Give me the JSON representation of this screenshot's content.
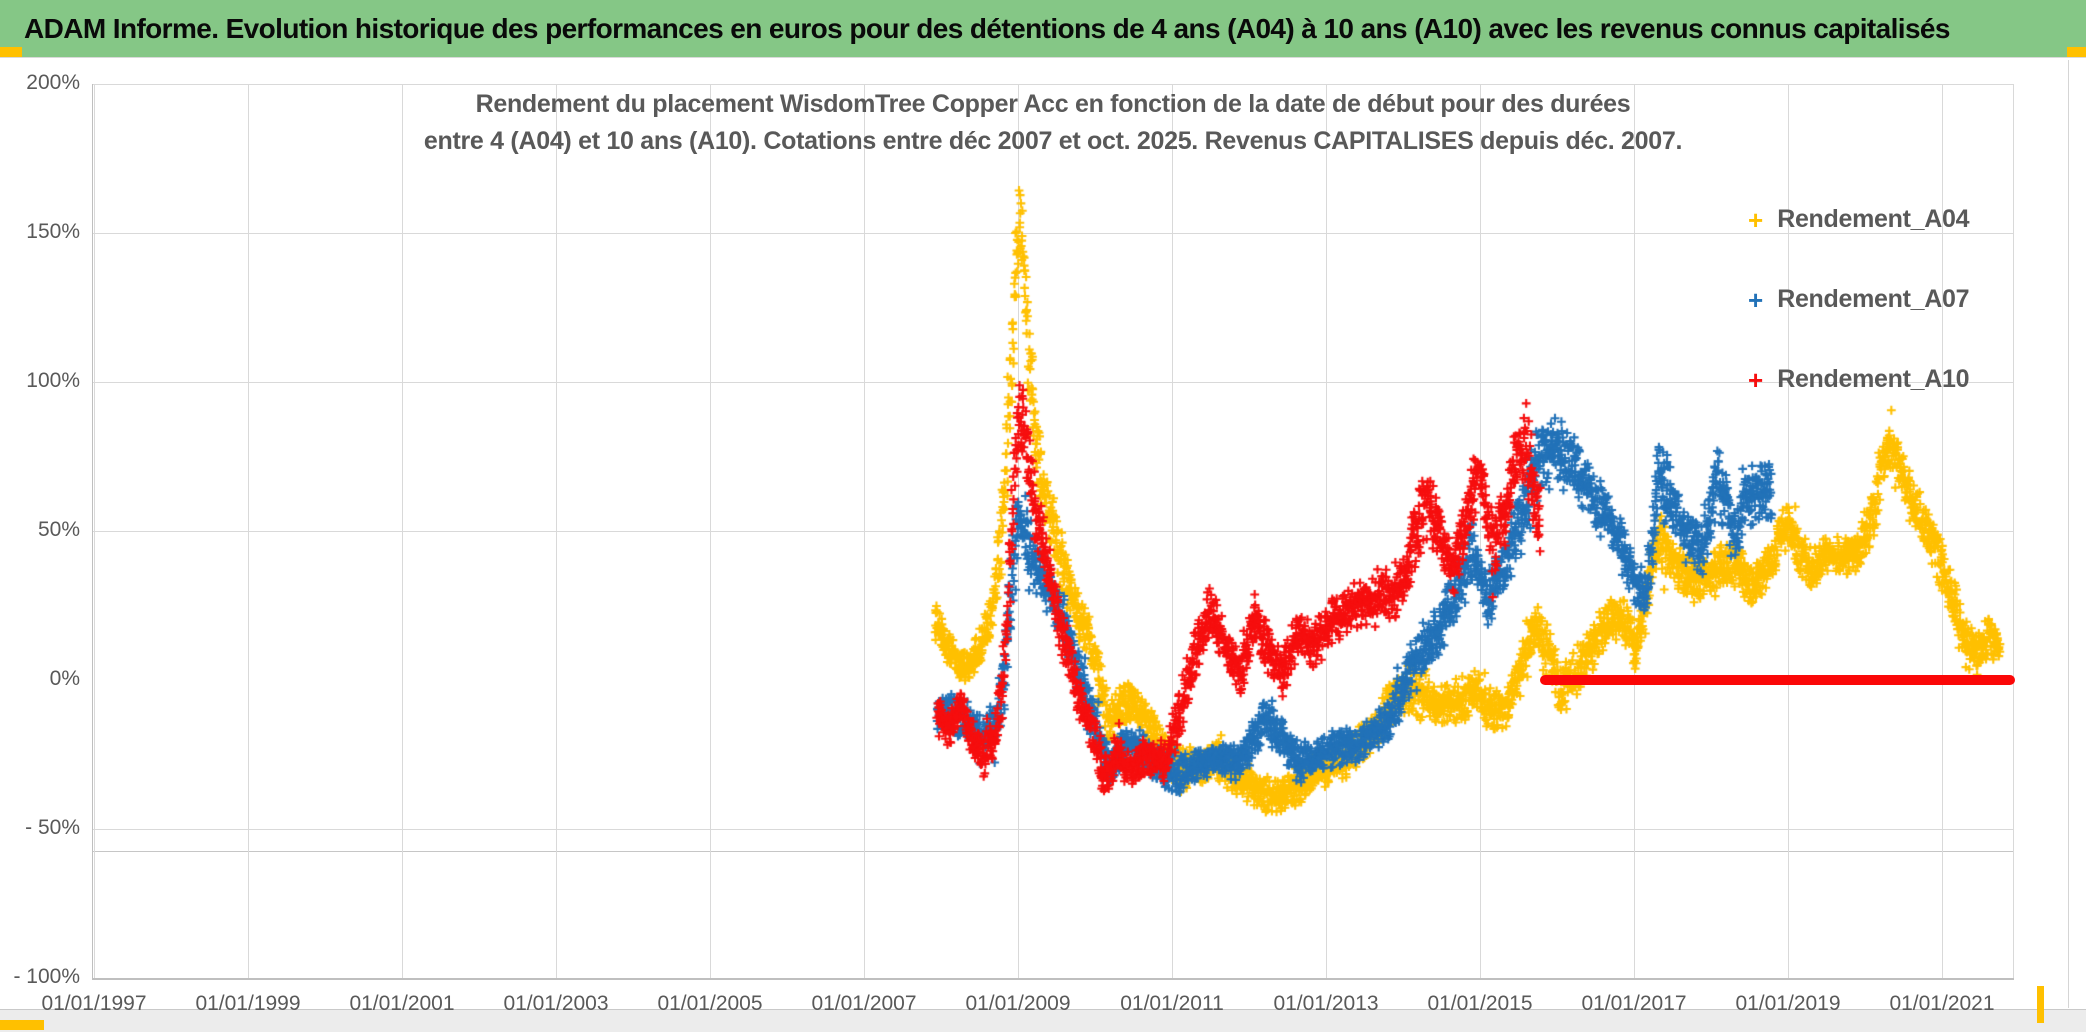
{
  "header": {
    "title": "ADAM Informe. Evolution historique des performances en euros pour des détentions de 4 ans (A04) à 10 ans (A10) avec les revenus connus capitalisés",
    "bg_color": "#85C786",
    "accent_color": "#FFC000",
    "text_color": "#0a0a0a"
  },
  "chart_data": {
    "type": "scatter",
    "title_lines": [
      "Rendement du placement WisdomTree Copper Acc en fonction de la date de début pour des durées",
      "entre 4 (A04) et 10 ans (A10). Cotations entre déc 2007 et oct. 2025. Revenus CAPITALISES depuis déc. 2007."
    ],
    "marker": "+",
    "grid": true,
    "legend_position": "right",
    "y_axis": {
      "tick_labels": [
        "200%",
        "150%",
        "100%",
        "50%",
        "0%",
        "- 50%",
        "- 100%"
      ],
      "tick_values": [
        200,
        150,
        100,
        50,
        0,
        -50,
        -100
      ],
      "gridline_values": [
        200,
        150,
        100,
        50,
        -50,
        -100
      ],
      "extra_line_value": -57.4,
      "min": -100,
      "max": 200
    },
    "x_axis": {
      "tick_labels": [
        "01/01/1997",
        "01/01/1999",
        "01/01/2001",
        "01/01/2003",
        "01/01/2005",
        "01/01/2007",
        "01/01/2009",
        "01/01/2011",
        "01/01/2013",
        "01/01/2015",
        "01/01/2017",
        "01/01/2019",
        "01/01/2021"
      ],
      "tick_years": [
        1997,
        1999,
        2001,
        2003,
        2005,
        2007,
        2009,
        2011,
        2013,
        2015,
        2017,
        2019,
        2021
      ],
      "min_year": 1997,
      "max_year": 2021.95
    },
    "legend": [
      {
        "label": "Rendement_A04",
        "color": "#FFC000"
      },
      {
        "label": "Rendement_A07",
        "color": "#2272B8"
      },
      {
        "label": "Rendement_A10",
        "color": "#F60E0E"
      }
    ],
    "zero_line": {
      "color": "#FB0707",
      "from_year": 2015.78,
      "to_year": 2021.95,
      "value": 0
    },
    "series": [
      {
        "name": "Rendement_A04",
        "color": "#FFC000",
        "points_per_year": 252,
        "path": [
          [
            2007.92,
            20,
            7
          ],
          [
            2008.05,
            13,
            6
          ],
          [
            2008.2,
            6,
            6
          ],
          [
            2008.35,
            5,
            6
          ],
          [
            2008.5,
            11,
            7
          ],
          [
            2008.65,
            22,
            8
          ],
          [
            2008.78,
            45,
            14
          ],
          [
            2008.9,
            95,
            22
          ],
          [
            2008.99,
            148,
            16
          ],
          [
            2009.05,
            152,
            14
          ],
          [
            2009.12,
            115,
            18
          ],
          [
            2009.2,
            88,
            16
          ],
          [
            2009.32,
            65,
            12
          ],
          [
            2009.45,
            50,
            11
          ],
          [
            2009.6,
            38,
            12
          ],
          [
            2009.75,
            24,
            10
          ],
          [
            2009.9,
            16,
            8
          ],
          [
            2010.05,
            0,
            9
          ],
          [
            2010.18,
            -14,
            9
          ],
          [
            2010.35,
            -10,
            8
          ],
          [
            2010.5,
            -6,
            7
          ],
          [
            2010.7,
            -16,
            8
          ],
          [
            2010.9,
            -24,
            8
          ],
          [
            2011.1,
            -30,
            8
          ],
          [
            2011.3,
            -28,
            7
          ],
          [
            2011.6,
            -27,
            7
          ],
          [
            2011.85,
            -32,
            7
          ],
          [
            2012.1,
            -36,
            7
          ],
          [
            2012.35,
            -40,
            6
          ],
          [
            2012.6,
            -36,
            7
          ],
          [
            2012.85,
            -32,
            7
          ],
          [
            2013.1,
            -28,
            7
          ],
          [
            2013.35,
            -25,
            7
          ],
          [
            2013.6,
            -18,
            7
          ],
          [
            2013.8,
            -10,
            8
          ],
          [
            2013.98,
            -3,
            8
          ],
          [
            2014.2,
            -4,
            9
          ],
          [
            2014.45,
            -9,
            7
          ],
          [
            2014.7,
            -7,
            8
          ],
          [
            2014.95,
            -4,
            7
          ],
          [
            2015.15,
            -10,
            7
          ],
          [
            2015.35,
            -8,
            7
          ],
          [
            2015.55,
            4,
            9
          ],
          [
            2015.72,
            18,
            9
          ],
          [
            2015.9,
            8,
            9
          ],
          [
            2016.05,
            -4,
            8
          ],
          [
            2016.25,
            3,
            8
          ],
          [
            2016.45,
            11,
            8
          ],
          [
            2016.65,
            19,
            8
          ],
          [
            2016.85,
            22,
            8
          ],
          [
            2017.02,
            10,
            7
          ],
          [
            2017.18,
            30,
            10
          ],
          [
            2017.32,
            50,
            11
          ],
          [
            2017.5,
            40,
            8
          ],
          [
            2017.7,
            34,
            8
          ],
          [
            2017.95,
            34,
            8
          ],
          [
            2018.15,
            37,
            9
          ],
          [
            2018.35,
            38,
            9
          ],
          [
            2018.55,
            31,
            7
          ],
          [
            2018.78,
            40,
            8
          ],
          [
            2019.0,
            53,
            8
          ],
          [
            2019.15,
            44,
            8
          ],
          [
            2019.3,
            37,
            7
          ],
          [
            2019.5,
            43,
            7
          ],
          [
            2019.7,
            40,
            7
          ],
          [
            2019.9,
            44,
            7
          ],
          [
            2020.05,
            52,
            9
          ],
          [
            2020.2,
            70,
            13
          ],
          [
            2020.35,
            79,
            8
          ],
          [
            2020.5,
            68,
            10
          ],
          [
            2020.65,
            57,
            8
          ],
          [
            2020.8,
            51,
            7
          ],
          [
            2020.95,
            42,
            8
          ],
          [
            2021.1,
            30,
            9
          ],
          [
            2021.28,
            13,
            9
          ],
          [
            2021.45,
            9,
            7
          ],
          [
            2021.6,
            15,
            8
          ],
          [
            2021.75,
            11,
            6
          ]
        ]
      },
      {
        "name": "Rendement_A07",
        "color": "#2272B8",
        "points_per_year": 252,
        "path": [
          [
            2007.95,
            -10,
            6
          ],
          [
            2008.15,
            -12,
            7
          ],
          [
            2008.35,
            -13,
            7
          ],
          [
            2008.55,
            -19,
            8
          ],
          [
            2008.7,
            -16,
            8
          ],
          [
            2008.82,
            0,
            12
          ],
          [
            2008.93,
            35,
            16
          ],
          [
            2009.0,
            55,
            13
          ],
          [
            2009.1,
            48,
            11
          ],
          [
            2009.25,
            38,
            10
          ],
          [
            2009.4,
            30,
            9
          ],
          [
            2009.55,
            22,
            9
          ],
          [
            2009.7,
            10,
            9
          ],
          [
            2009.85,
            -4,
            9
          ],
          [
            2010.0,
            -15,
            8
          ],
          [
            2010.2,
            -30,
            7
          ],
          [
            2010.4,
            -22,
            7
          ],
          [
            2010.6,
            -23,
            7
          ],
          [
            2010.8,
            -28,
            7
          ],
          [
            2011.05,
            -32,
            7
          ],
          [
            2011.3,
            -30,
            6
          ],
          [
            2011.55,
            -26,
            6
          ],
          [
            2011.8,
            -28,
            6
          ],
          [
            2012.0,
            -22,
            7
          ],
          [
            2012.2,
            -13,
            7
          ],
          [
            2012.45,
            -20,
            7
          ],
          [
            2012.65,
            -28,
            7
          ],
          [
            2012.9,
            -26,
            6
          ],
          [
            2013.15,
            -22,
            6
          ],
          [
            2013.4,
            -22,
            6
          ],
          [
            2013.65,
            -17,
            7
          ],
          [
            2013.85,
            -13,
            8
          ],
          [
            2014.0,
            -2,
            10
          ],
          [
            2014.25,
            10,
            10
          ],
          [
            2014.5,
            18,
            10
          ],
          [
            2014.72,
            30,
            10
          ],
          [
            2014.9,
            44,
            12
          ],
          [
            2015.1,
            26,
            9
          ],
          [
            2015.3,
            36,
            10
          ],
          [
            2015.55,
            58,
            14
          ],
          [
            2015.8,
            76,
            13
          ],
          [
            2016.0,
            76,
            12
          ],
          [
            2016.2,
            73,
            10
          ],
          [
            2016.4,
            65,
            10
          ],
          [
            2016.6,
            57,
            10
          ],
          [
            2016.8,
            48,
            9
          ],
          [
            2016.95,
            36,
            9
          ],
          [
            2017.15,
            28,
            8
          ],
          [
            2017.33,
            70,
            18
          ],
          [
            2017.5,
            60,
            9
          ],
          [
            2017.7,
            48,
            8
          ],
          [
            2017.9,
            44,
            9
          ],
          [
            2018.1,
            68,
            13
          ],
          [
            2018.3,
            48,
            10
          ],
          [
            2018.45,
            60,
            10
          ],
          [
            2018.6,
            64,
            11
          ],
          [
            2018.79,
            62,
            10
          ]
        ]
      },
      {
        "name": "Rendement_A10",
        "color": "#F60E0E",
        "points_per_year": 252,
        "path": [
          [
            2007.95,
            -12,
            7
          ],
          [
            2008.1,
            -17,
            6
          ],
          [
            2008.25,
            -9,
            6
          ],
          [
            2008.4,
            -19,
            6
          ],
          [
            2008.55,
            -26,
            7
          ],
          [
            2008.7,
            -18,
            8
          ],
          [
            2008.82,
            5,
            14
          ],
          [
            2008.93,
            55,
            20
          ],
          [
            2009.01,
            93,
            13
          ],
          [
            2009.1,
            80,
            12
          ],
          [
            2009.2,
            60,
            12
          ],
          [
            2009.35,
            42,
            10
          ],
          [
            2009.5,
            25,
            10
          ],
          [
            2009.65,
            9,
            9
          ],
          [
            2009.8,
            -6,
            9
          ],
          [
            2009.95,
            -16,
            8
          ],
          [
            2010.12,
            -32,
            8
          ],
          [
            2010.3,
            -25,
            7
          ],
          [
            2010.48,
            -31,
            7
          ],
          [
            2010.65,
            -25,
            7
          ],
          [
            2010.9,
            -28,
            7
          ],
          [
            2011.1,
            -12,
            10
          ],
          [
            2011.3,
            10,
            10
          ],
          [
            2011.5,
            24,
            9
          ],
          [
            2011.72,
            8,
            9
          ],
          [
            2011.9,
            2,
            8
          ],
          [
            2012.08,
            21,
            9
          ],
          [
            2012.28,
            8,
            9
          ],
          [
            2012.45,
            3,
            8
          ],
          [
            2012.65,
            16,
            8
          ],
          [
            2012.85,
            12,
            8
          ],
          [
            2013.05,
            20,
            9
          ],
          [
            2013.3,
            24,
            8
          ],
          [
            2013.55,
            27,
            8
          ],
          [
            2013.75,
            30,
            9
          ],
          [
            2013.95,
            29,
            9
          ],
          [
            2014.12,
            45,
            12
          ],
          [
            2014.3,
            60,
            13
          ],
          [
            2014.5,
            47,
            9
          ],
          [
            2014.65,
            36,
            8
          ],
          [
            2014.8,
            52,
            11
          ],
          [
            2015.0,
            74,
            11
          ],
          [
            2015.15,
            45,
            12
          ],
          [
            2015.35,
            57,
            12
          ],
          [
            2015.5,
            80,
            12
          ],
          [
            2015.65,
            72,
            14
          ],
          [
            2015.79,
            50,
            16
          ]
        ]
      }
    ]
  }
}
